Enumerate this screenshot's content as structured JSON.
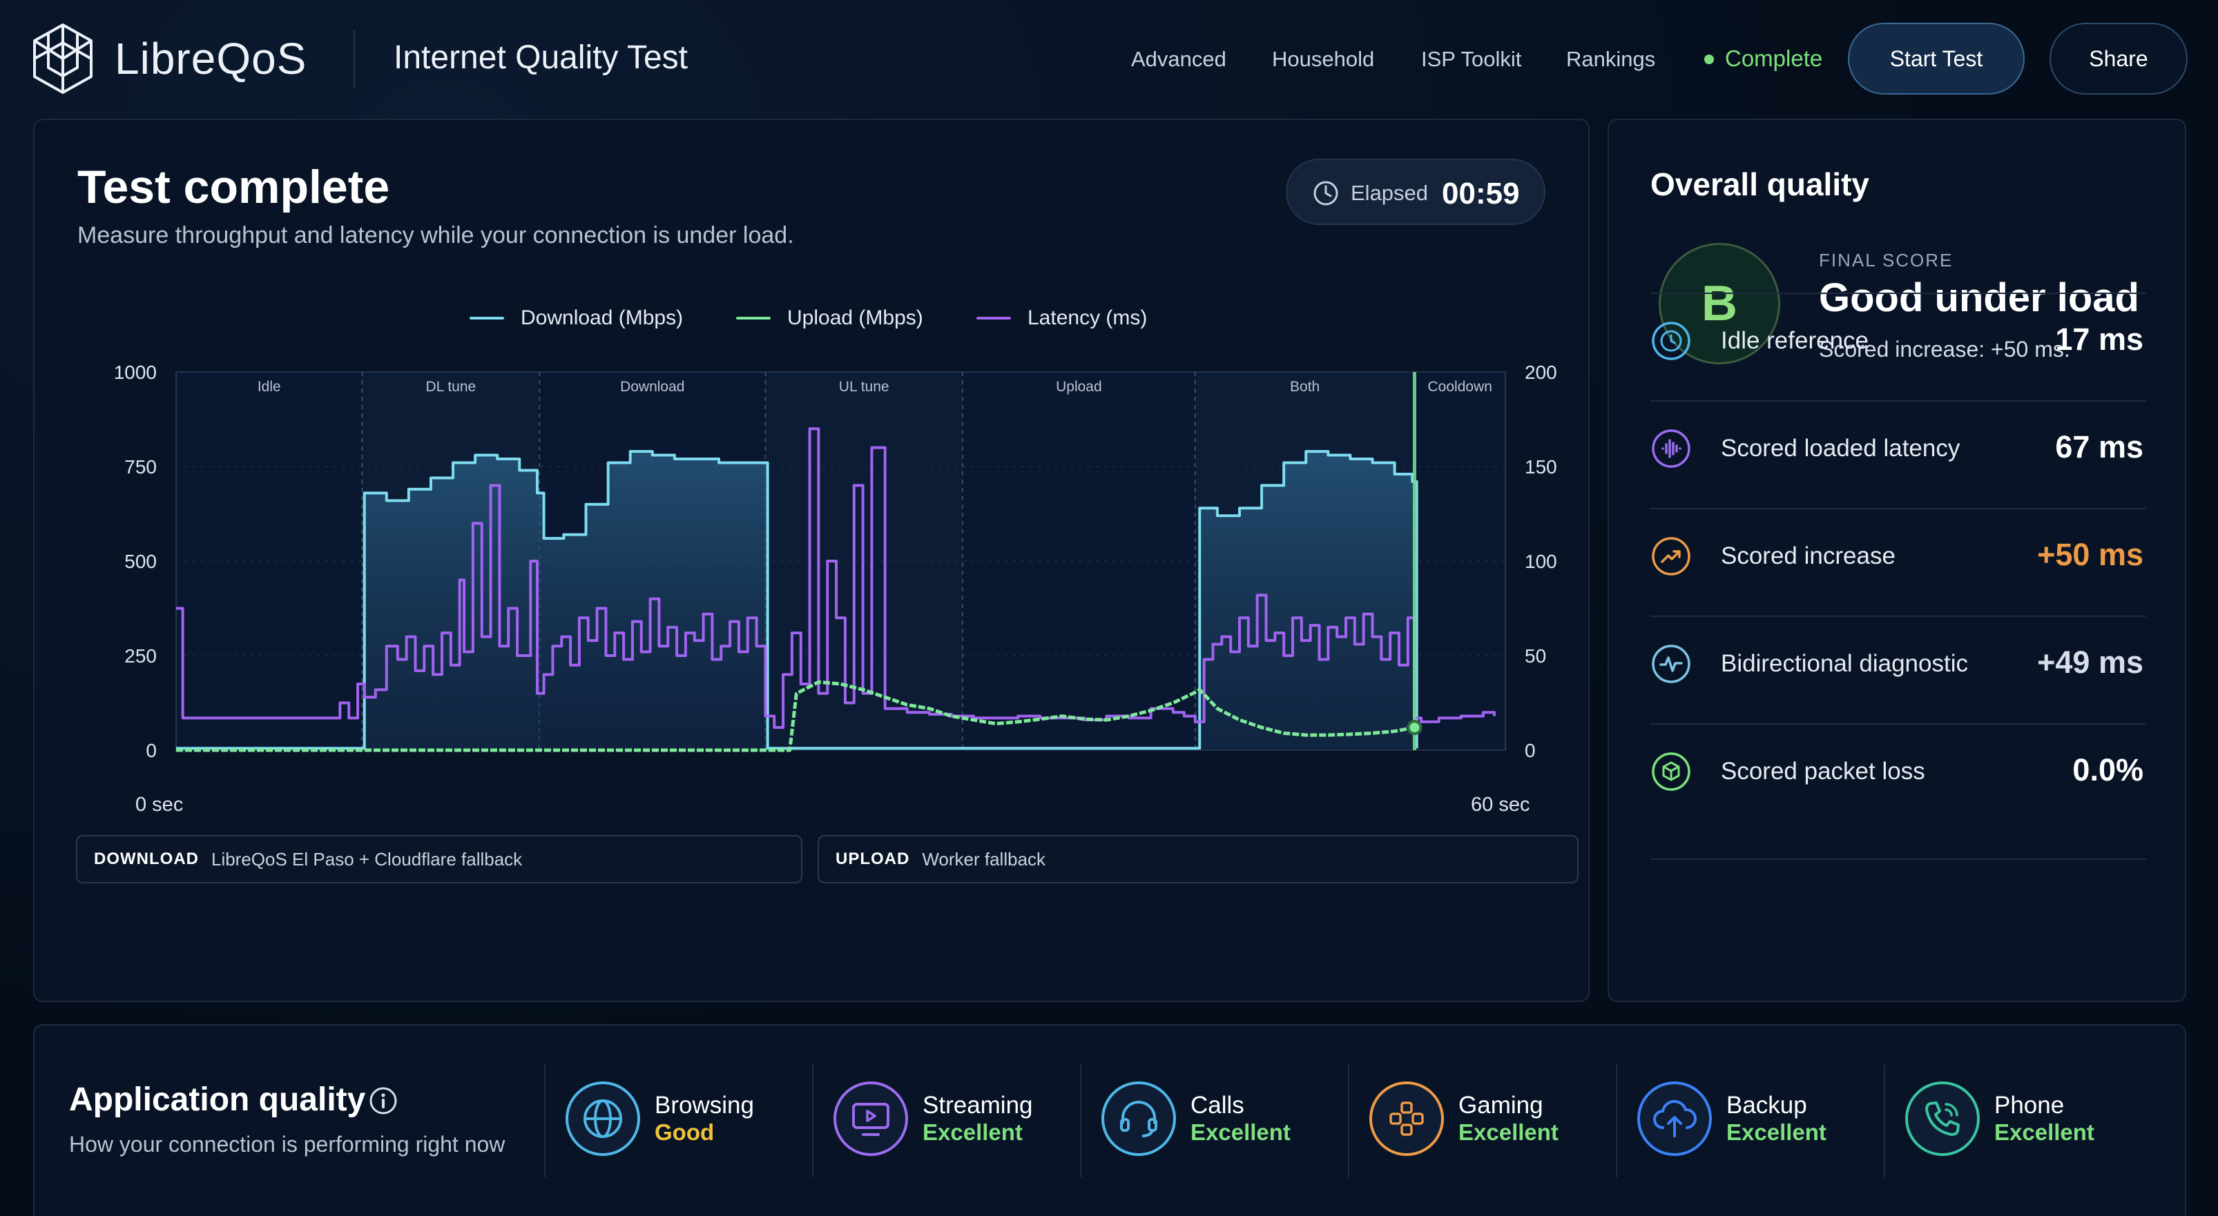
{
  "header": {
    "logo_text": "LibreQoS",
    "app_title": "Internet Quality Test",
    "nav": [
      "Advanced",
      "Household",
      "ISP Toolkit",
      "Rankings"
    ],
    "status": "Complete",
    "start_button": "Start Test",
    "share_button": "Share"
  },
  "main": {
    "title": "Test complete",
    "subtitle": "Measure throughput and latency while your connection is under load.",
    "elapsed_label": "Elapsed",
    "elapsed_value": "00:59",
    "x_start": "0 sec",
    "x_end": "60 sec",
    "sources": [
      {
        "label": "DOWNLOAD",
        "value": "LibreQoS El Paso + Cloudflare fallback"
      },
      {
        "label": "UPLOAD",
        "value": "Worker fallback"
      }
    ]
  },
  "chart_data": {
    "type": "line",
    "title": "",
    "xlabel": "",
    "x_range_label": [
      "0 sec",
      "60 sec"
    ],
    "xlim": [
      0,
      60
    ],
    "y_left": {
      "ticks": [
        "1000",
        "750",
        "500",
        "250",
        "0"
      ],
      "lim": [
        0,
        1000
      ]
    },
    "y_right": {
      "ticks": [
        "200",
        "150",
        "100",
        "50",
        "0"
      ],
      "lim": [
        0,
        200
      ]
    },
    "phases": [
      {
        "name": "Idle",
        "start": 0,
        "end": 8.4
      },
      {
        "name": "DL tune",
        "start": 8.4,
        "end": 16.4
      },
      {
        "name": "Download",
        "start": 16.4,
        "end": 26.6
      },
      {
        "name": "UL tune",
        "start": 26.6,
        "end": 35.5
      },
      {
        "name": "Upload",
        "start": 35.5,
        "end": 46.0
      },
      {
        "name": "Both",
        "start": 46.0,
        "end": 55.9
      },
      {
        "name": "Cooldown",
        "start": 55.9,
        "end": 60
      }
    ],
    "grid": true,
    "legend": "top-center",
    "series": [
      {
        "name": "Download (Mbps)",
        "color": "#7fdcf0",
        "axis": "left",
        "x": [
          0,
          8.3,
          8.5,
          9.5,
          10.5,
          11.5,
          12.5,
          13.5,
          14.5,
          15.5,
          16.3,
          16.6,
          17.5,
          18.5,
          19.5,
          20.5,
          21.5,
          22.5,
          23.5,
          24.5,
          25.5,
          26.5,
          26.7,
          45.9,
          46.2,
          47,
          48,
          49,
          50,
          51,
          52,
          53,
          54,
          55,
          55.8,
          56
        ],
        "y": [
          5,
          5,
          680,
          660,
          690,
          720,
          760,
          780,
          770,
          740,
          680,
          560,
          570,
          650,
          760,
          790,
          780,
          770,
          770,
          760,
          760,
          760,
          5,
          5,
          640,
          620,
          640,
          700,
          760,
          790,
          780,
          770,
          760,
          730,
          710,
          5
        ]
      },
      {
        "name": "Upload (Mbps)",
        "color": "#7ee89a",
        "axis": "left",
        "x": [
          0,
          26.7,
          27.7,
          28,
          29,
          30,
          31,
          32,
          33,
          34,
          35,
          36,
          37,
          38,
          39,
          40,
          41,
          42,
          43,
          44,
          45,
          45.9,
          46.2,
          47,
          48,
          49,
          50,
          51,
          52,
          53,
          54,
          55,
          55.9
        ],
        "y": [
          0,
          0,
          0,
          150,
          180,
          175,
          160,
          140,
          120,
          110,
          90,
          80,
          70,
          75,
          82,
          90,
          82,
          80,
          90,
          105,
          125,
          150,
          160,
          110,
          80,
          60,
          45,
          40,
          40,
          42,
          45,
          50,
          60
        ]
      },
      {
        "name": "Latency (ms)",
        "color": "#a064f0",
        "axis": "right",
        "x": [
          0,
          0.3,
          0.6,
          2,
          4,
          5,
          6,
          7,
          7.4,
          7.8,
          8.2,
          8.5,
          9,
          9.5,
          10,
          10.4,
          10.8,
          11.2,
          11.6,
          12,
          12.4,
          12.8,
          13,
          13.4,
          13.8,
          14.2,
          14.6,
          15,
          15.4,
          16,
          16.3,
          16.6,
          17,
          17.4,
          17.8,
          18.2,
          18.6,
          19,
          19.4,
          19.8,
          20.2,
          20.6,
          21,
          21.4,
          21.8,
          22.2,
          22.6,
          23,
          23.4,
          23.8,
          24.2,
          24.6,
          25,
          25.4,
          25.8,
          26.2,
          26.6,
          27,
          27.4,
          27.8,
          28.2,
          28.6,
          29,
          29.4,
          29.8,
          30.2,
          30.6,
          31,
          31.4,
          32,
          33,
          34,
          35,
          36,
          37,
          38,
          39,
          40,
          41,
          42,
          43,
          44,
          45,
          45.5,
          46,
          46.4,
          46.8,
          47.2,
          47.6,
          48,
          48.4,
          48.8,
          49.2,
          49.6,
          50,
          50.4,
          50.8,
          51.2,
          51.6,
          52,
          52.4,
          52.8,
          53.2,
          53.6,
          54,
          54.4,
          54.8,
          55.2,
          55.6,
          55.9,
          56.2,
          57,
          58,
          59,
          59.5
        ],
        "y": [
          75,
          17,
          17,
          17,
          17,
          17,
          17,
          17,
          25,
          17,
          35,
          28,
          32,
          55,
          48,
          60,
          42,
          55,
          40,
          62,
          45,
          90,
          52,
          120,
          60,
          140,
          55,
          75,
          50,
          100,
          30,
          40,
          55,
          60,
          45,
          70,
          58,
          75,
          50,
          62,
          48,
          68,
          52,
          80,
          55,
          65,
          50,
          62,
          58,
          72,
          48,
          55,
          68,
          52,
          70,
          55,
          18,
          12,
          40,
          62,
          35,
          170,
          30,
          100,
          70,
          25,
          140,
          30,
          160,
          22,
          20,
          19,
          18,
          17,
          17,
          18,
          17,
          17,
          16,
          18,
          17,
          22,
          20,
          18,
          15,
          48,
          56,
          60,
          52,
          70,
          55,
          82,
          58,
          62,
          50,
          70,
          58,
          66,
          48,
          65,
          60,
          70,
          56,
          72,
          60,
          48,
          62,
          45,
          70,
          17,
          15,
          17,
          18,
          20,
          18
        ]
      }
    ]
  },
  "overall": {
    "title": "Overall quality",
    "grade": "B",
    "final_label": "FINAL SCORE",
    "final_value": "Good under load",
    "final_sub": "Scored increase: +50 ms.",
    "metrics": [
      {
        "label": "Idle reference",
        "value": "17 ms",
        "color": "#4fb6e8",
        "value_color": "#ffffff",
        "icon": "clock-icon"
      },
      {
        "label": "Scored loaded latency",
        "value": "67 ms",
        "color": "#9b6cf0",
        "value_color": "#ffffff",
        "icon": "waveform-icon"
      },
      {
        "label": "Scored increase",
        "value": "+50 ms",
        "color": "#ee9a47",
        "value_color": "#ee9a47",
        "icon": "trend-up-icon"
      },
      {
        "label": "Bidirectional diagnostic",
        "value": "+49 ms",
        "color": "#7fc4e8",
        "value_color": "#d8dee8",
        "icon": "pulse-icon"
      },
      {
        "label": "Scored packet loss",
        "value": "0.0%",
        "color": "#7ee07e",
        "value_color": "#ffffff",
        "icon": "package-icon"
      }
    ]
  },
  "app_quality": {
    "title": "Application quality",
    "subtitle": "How your connection is performing right now",
    "apps": [
      {
        "name": "Browsing",
        "status": "Good",
        "color": "#4fb6e8",
        "status_color": "#f0c23a",
        "icon": "globe-icon"
      },
      {
        "name": "Streaming",
        "status": "Excellent",
        "color": "#9b6cf0",
        "status_color": "#7ee07e",
        "icon": "monitor-play-icon"
      },
      {
        "name": "Calls",
        "status": "Excellent",
        "color": "#4fb6e8",
        "status_color": "#7ee07e",
        "icon": "headset-icon"
      },
      {
        "name": "Gaming",
        "status": "Excellent",
        "color": "#ee9a47",
        "status_color": "#7ee07e",
        "icon": "gamepad-icon"
      },
      {
        "name": "Backup",
        "status": "Excellent",
        "color": "#3b82f6",
        "status_color": "#7ee07e",
        "icon": "cloud-upload-icon"
      },
      {
        "name": "Phone",
        "status": "Excellent",
        "color": "#39c4a0",
        "status_color": "#7ee07e",
        "icon": "phone-icon"
      }
    ]
  }
}
